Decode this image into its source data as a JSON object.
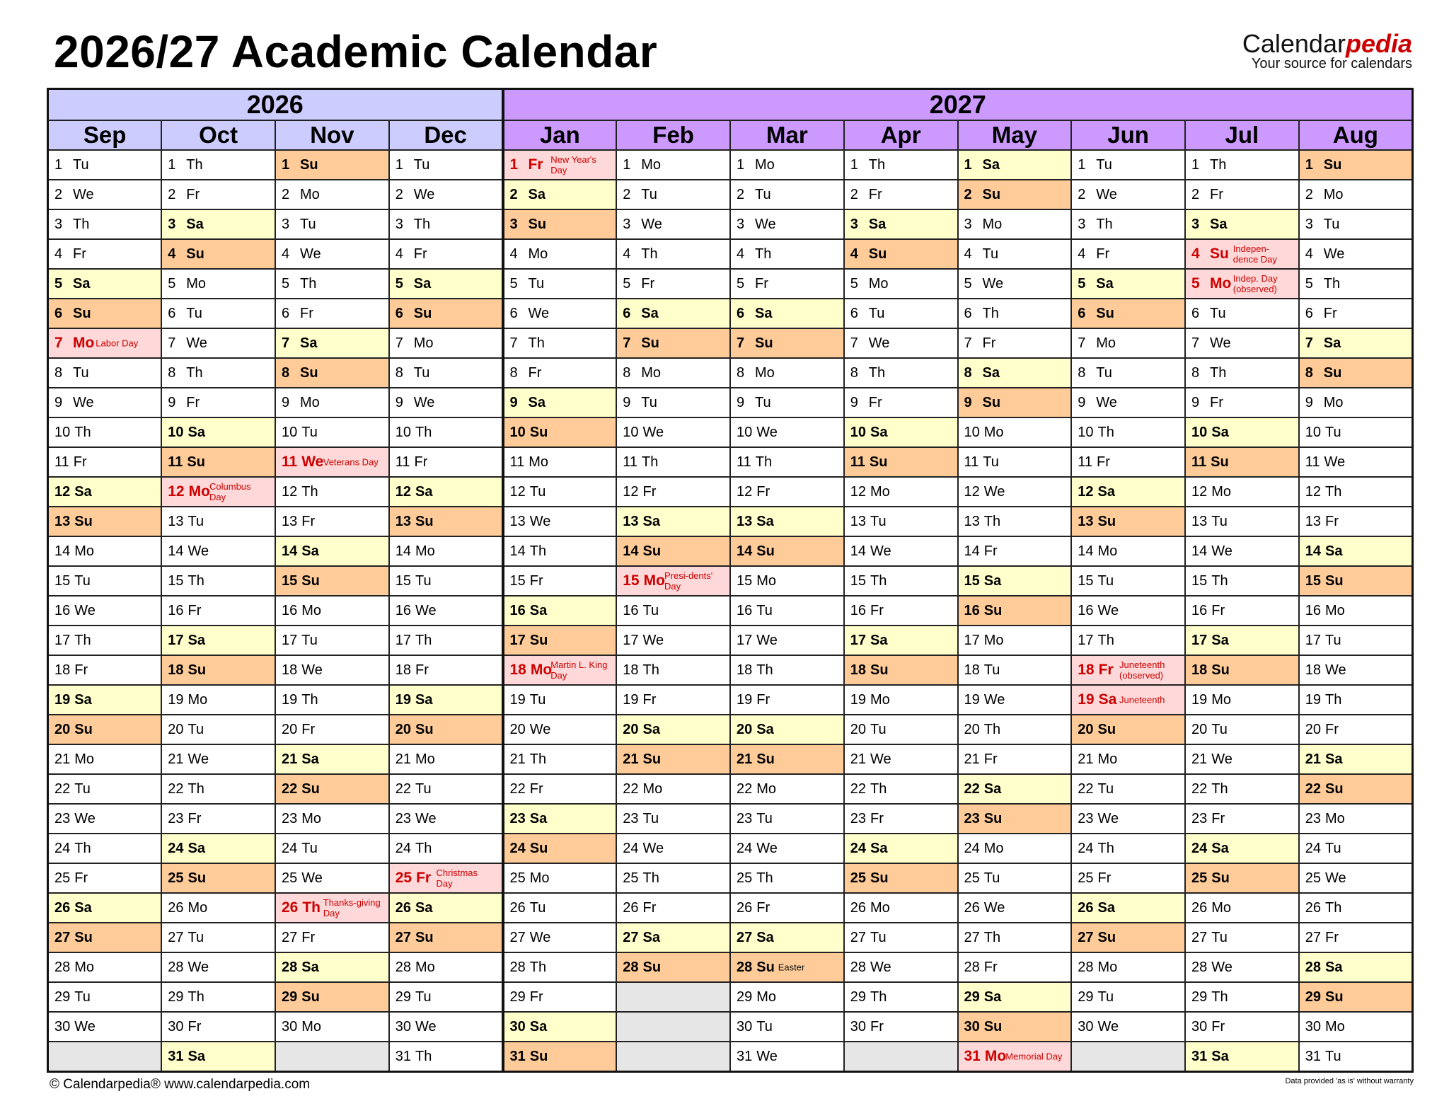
{
  "title": "2026/27 Academic Calendar",
  "logo": {
    "brand_main": "Calendar",
    "brand_accent": "pedia",
    "tagline": "Your source for calendars"
  },
  "colors": {
    "year_2026": "#ccccff",
    "year_2027": "#cc99ff",
    "saturday": "#ffffcc",
    "sunday": "#ffcc99",
    "holiday_bg": "#ffd9d9",
    "holiday_text": "#cc0000",
    "empty": "#e6e6e6"
  },
  "weekday_names": [
    "Mo",
    "Tu",
    "We",
    "Th",
    "Fr",
    "Sa",
    "Su"
  ],
  "years": [
    {
      "label": "2026",
      "months": 4
    },
    {
      "label": "2027",
      "months": 8
    }
  ],
  "months": [
    {
      "name": "Sep",
      "year": "2026",
      "first_weekday": "Tu",
      "days": 30,
      "holidays": {
        "7": "Labor Day"
      }
    },
    {
      "name": "Oct",
      "year": "2026",
      "first_weekday": "Th",
      "days": 31,
      "holidays": {
        "12": "Columbus Day"
      }
    },
    {
      "name": "Nov",
      "year": "2026",
      "first_weekday": "Su",
      "days": 30,
      "holidays": {
        "11": "Veterans Day",
        "26": "Thanks-giving Day"
      }
    },
    {
      "name": "Dec",
      "year": "2026",
      "first_weekday": "Tu",
      "days": 31,
      "holidays": {
        "25": "Christmas Day"
      }
    },
    {
      "name": "Jan",
      "year": "2027",
      "first_weekday": "Fr",
      "days": 31,
      "holidays": {
        "1": "New Year's Day",
        "18": "Martin L. King Day"
      }
    },
    {
      "name": "Feb",
      "year": "2027",
      "first_weekday": "Mo",
      "days": 28,
      "holidays": {
        "15": "Presi-dents' Day"
      }
    },
    {
      "name": "Mar",
      "year": "2027",
      "first_weekday": "Mo",
      "days": 31,
      "holidays": {},
      "notes": {
        "28": "Easter"
      }
    },
    {
      "name": "Apr",
      "year": "2027",
      "first_weekday": "Th",
      "days": 30,
      "holidays": {}
    },
    {
      "name": "May",
      "year": "2027",
      "first_weekday": "Sa",
      "days": 31,
      "holidays": {
        "31": "Memorial Day"
      }
    },
    {
      "name": "Jun",
      "year": "2027",
      "first_weekday": "Tu",
      "days": 30,
      "holidays": {
        "18": "Juneteenth (observed)",
        "19": "Juneteenth"
      }
    },
    {
      "name": "Jul",
      "year": "2027",
      "first_weekday": "Th",
      "days": 31,
      "holidays": {
        "4": "Indepen-dence Day",
        "5": "Indep. Day (observed)"
      }
    },
    {
      "name": "Aug",
      "year": "2027",
      "first_weekday": "Su",
      "days": 31,
      "holidays": {}
    }
  ],
  "footer": {
    "left": "© Calendarpedia®   www.calendarpedia.com",
    "right": "Data provided 'as is' without warranty"
  }
}
